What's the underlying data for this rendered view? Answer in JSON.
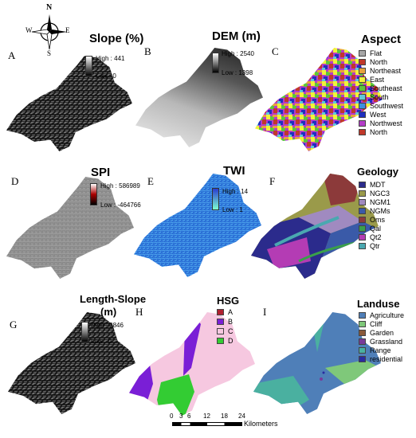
{
  "compass": {
    "n": "N",
    "s": "S",
    "e": "E",
    "w": "W"
  },
  "panels": {
    "a": {
      "letter": "A",
      "title": "Slope (%)",
      "high": "High : 441",
      "low": "Low : 0"
    },
    "b": {
      "letter": "B",
      "title": "DEM (m)",
      "high": "High : 2540",
      "low": "Low : 1398"
    },
    "c": {
      "letter": "C",
      "title": "Aspect",
      "items": [
        {
          "label": "Flat",
          "color": "#a6a6a6"
        },
        {
          "label": "North",
          "color": "#c0392b"
        },
        {
          "label": "Northeast",
          "color": "#e8a33c"
        },
        {
          "label": "East",
          "color": "#f2f23a"
        },
        {
          "label": "Southeast",
          "color": "#5cc43c"
        },
        {
          "label": "South",
          "color": "#60c8d8"
        },
        {
          "label": "Southwest",
          "color": "#3c8fe0"
        },
        {
          "label": "West",
          "color": "#1f2fbf"
        },
        {
          "label": "Northwest",
          "color": "#b43cc8"
        },
        {
          "label": "North",
          "color": "#c0392b"
        }
      ]
    },
    "d": {
      "letter": "D",
      "title": "SPI",
      "high": "High : 586989",
      "low": "Low : -464766"
    },
    "e": {
      "letter": "E",
      "title": "TWI",
      "high": "High : 14",
      "low": "Low : 1"
    },
    "f": {
      "letter": "F",
      "title": "Geology",
      "items": [
        {
          "label": "MDT",
          "color": "#2b2b8c"
        },
        {
          "label": "NGC3",
          "color": "#9a9a4a"
        },
        {
          "label": "NGM1",
          "color": "#a08ac0"
        },
        {
          "label": "NGMs",
          "color": "#3a5aa8"
        },
        {
          "label": "Oms",
          "color": "#8c3a3a"
        },
        {
          "label": "Qal",
          "color": "#3aa04a"
        },
        {
          "label": "Qt2",
          "color": "#b43cb4"
        },
        {
          "label": "Qtr",
          "color": "#4aa8b0"
        }
      ]
    },
    "g": {
      "letter": "G",
      "title_line1": "Length-Slope",
      "title_line2": "(m)",
      "high": "High : 3846",
      "low": "Low : 0"
    },
    "h": {
      "letter": "H",
      "title": "HSG",
      "items": [
        {
          "label": "A",
          "color": "#b02030"
        },
        {
          "label": "B",
          "color": "#7a1fd6"
        },
        {
          "label": "C",
          "color": "#f6c8e0"
        },
        {
          "label": "D",
          "color": "#33cc33"
        }
      ]
    },
    "i": {
      "letter": "I",
      "title": "Landuse",
      "items": [
        {
          "label": "Agriculture",
          "color": "#4f7fb8"
        },
        {
          "label": "Cliff",
          "color": "#7fc87a"
        },
        {
          "label": "Garden",
          "color": "#8a5a3a"
        },
        {
          "label": "Grassland",
          "color": "#7a3a9a"
        },
        {
          "label": "Range",
          "color": "#4ab0a0"
        },
        {
          "label": "residential",
          "color": "#2a2aa0"
        }
      ]
    }
  },
  "scalebar": {
    "ticks": [
      "0",
      "3",
      "6",
      "12",
      "18",
      "24"
    ],
    "unit": "Kilometers"
  }
}
